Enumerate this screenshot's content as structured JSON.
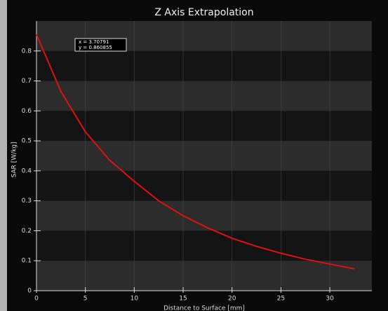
{
  "chart_data": {
    "type": "line",
    "title": "Z Axis Extrapolation",
    "x_label": "Distance to Surface [mm]",
    "y_label": "SAR [W/kg]",
    "x": [
      0,
      2.5,
      5,
      7.5,
      10,
      12.5,
      15,
      17.5,
      20,
      22.5,
      25,
      27.5,
      30,
      32.5
    ],
    "series": [
      {
        "color": "#e01010",
        "values": [
          0.855,
          0.665,
          0.53,
          0.435,
          0.365,
          0.3,
          0.25,
          0.21,
          0.175,
          0.148,
          0.125,
          0.105,
          0.089,
          0.073
        ]
      }
    ],
    "xlim": [
      0,
      34.3
    ],
    "ylim": [
      0,
      0.9
    ],
    "xticks": [
      0,
      5,
      10,
      15,
      20,
      25,
      30
    ],
    "yticks": [
      0,
      0.1,
      0.2,
      0.3,
      0.4,
      0.5,
      0.6,
      0.7,
      0.8
    ],
    "annotation": [
      "x = 3.70791",
      "y = 0.860855"
    ],
    "grid": true
  }
}
